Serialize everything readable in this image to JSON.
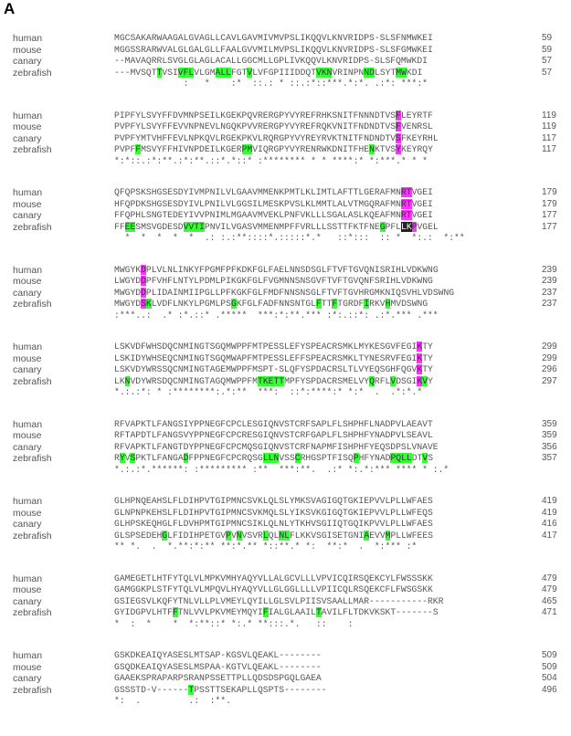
{
  "panel_label": "A",
  "blocks": [
    {
      "rows": [
        {
          "name": "human",
          "seq": "MGCSAKARWAAGALGVAGLLCAVLGAVMIVMVPSLIKQQVLKNVRIDPS-SLSFNMWKEI",
          "end": "59",
          "hl": []
        },
        {
          "name": "mouse",
          "seq": "MGGSSRARWVALGLGALGLLFAALGVVMILMVPSLIKQQVLKNVRIDPS-SLSFGMWKEI",
          "end": "59",
          "hl": []
        },
        {
          "name": "canary",
          "seq": "--MAVAQRRLSVGLGLAGLACALLGGCMLLGPLIVKQQVLKNVRIDPS-SLSFQMWKDI",
          "end": "57",
          "hl": []
        },
        {
          "name": "zebrafish",
          "seq": "---MVSQTTVSIVFLVLGMALLFGTVLVFGPIIIDDQTVKNVRINPNNDLSYTMWKDI",
          "end": "57",
          "hl": [
            [
              8,
              9,
              "g"
            ],
            [
              12,
              15,
              "g"
            ],
            [
              19,
              22,
              "g"
            ],
            [
              25,
              26,
              "g"
            ],
            [
              38,
              41,
              "g"
            ],
            [
              47,
              49,
              "g"
            ],
            [
              53,
              55,
              "g"
            ]
          ]
        },
        {
          "name": "",
          "seq": "             :   *    :*  ::.: * ::.:*::***.*:*. .:*: ***:*",
          "end": "",
          "hl": []
        }
      ]
    },
    {
      "rows": [
        {
          "name": "human",
          "seq": "PIPFYLSVYFFDVMNPSEILKGEKPQVRERGPYVYREFRHKSNITFNNNDTVSFLEYRTF",
          "end": "119",
          "hl": [
            [
              53,
              54,
              "m"
            ]
          ]
        },
        {
          "name": "mouse",
          "seq": "PVPFYLSVYFFEVVNPNEVLNGQKPVVRERGPYVYREFRQKVNITFNDNDTVSFVENRSL",
          "end": "119",
          "hl": [
            [
              53,
              54,
              "m"
            ]
          ]
        },
        {
          "name": "canary",
          "seq": "PVPFYMTVHFFEVLNPKQVLRGEKPKVLRQRGPYVYREYRVKTNITFNDNDTVSFKEYRHL",
          "end": "117",
          "hl": [
            [
              53,
              54,
              "m"
            ]
          ]
        },
        {
          "name": "zebrafish",
          "seq": "PVPFFMSVYFFHIVNPDEILKGERPMVIQRGPYVYRENRWKDNITFHENKTVSYKEYRQY",
          "end": "117",
          "hl": [
            [
              4,
              5,
              "g"
            ],
            [
              24,
              26,
              "g"
            ],
            [
              48,
              49,
              "g"
            ],
            [
              53,
              54,
              "m"
            ]
          ]
        },
        {
          "name": "",
          "seq": "*:*::.:*:**.:*:**.::*.*::* :******** * * ****:* *:***.* * *",
          "end": "",
          "hl": []
        }
      ]
    },
    {
      "rows": [
        {
          "name": "human",
          "seq": "QFQPSKSHGSESDYIVMPNILVLGAAVMMENKPMTLKLIMTLAFTTLGERAFMNRTVGEI",
          "end": "179",
          "hl": [
            [
              54,
              56,
              "m"
            ]
          ]
        },
        {
          "name": "mouse",
          "seq": "HFQPDKSHGSESDYIVLPNILVLGGSILMESKPVSLKLMMTLALVTMGQRAFMNRTVGEI",
          "end": "179",
          "hl": [
            [
              54,
              56,
              "m"
            ]
          ]
        },
        {
          "name": "canary",
          "seq": "FFQPHLSNGTEDEYIVVPNIMLMGAAVMVEKLPNFVKLLLSGALASLKQEAFMNRTVGEI",
          "end": "177",
          "hl": [
            [
              54,
              56,
              "m"
            ]
          ]
        },
        {
          "name": "zebrafish",
          "seq": "FFEESMSVGDESDVVTIPNVILVGASVMMENMPFFVRLLLSSTTFKTFNEGPFLLKPVGEL",
          "end": "177",
          "hl": [
            [
              2,
              4,
              "g"
            ],
            [
              13,
              17,
              "g"
            ],
            [
              50,
              51,
              "g"
            ],
            [
              54,
              56,
              "d"
            ],
            [
              56,
              57,
              "m"
            ]
          ]
        },
        {
          "name": "",
          "seq": "  *  *  *  *  *  .: :.:**::::*.:::::*.*   ::*:::  :: *  *:.:  *:**",
          "end": "",
          "hl": []
        }
      ]
    },
    {
      "rows": [
        {
          "name": "human",
          "seq": "MWGYKDPLVLNLINKYFPGMFPFKDKFGLFAELNNSDSGLFTVFTGVQNISRIHLVDKWNG",
          "end": "239",
          "hl": [
            [
              5,
              6,
              "m"
            ]
          ]
        },
        {
          "name": "mouse",
          "seq": "LWGYDDPFVHFLNTYLPDMLPIKGKFGLFVGMNNSNSGVFTVFTGVQNFSRIHLVDKWNG",
          "end": "239",
          "hl": [
            [
              5,
              6,
              "m"
            ]
          ]
        },
        {
          "name": "canary",
          "seq": "MWGYDDPLIDAINMIIPGLLPFKGKFGLFMDFNNSNSGLFTVFTGVHRGMKNIQSVHLVDSWNG",
          "end": "237",
          "hl": [
            [
              5,
              6,
              "m"
            ]
          ]
        },
        {
          "name": "zebrafish",
          "seq": "MWGYDSKLVDFLNKYLPGMLPSGKFGLFADFNNSNTGLFTTFTGRDFIRKVHMVDSWNG",
          "end": "237",
          "hl": [
            [
              5,
              6,
              "m"
            ],
            [
              6,
              7,
              "g"
            ],
            [
              22,
              23,
              "g"
            ],
            [
              38,
              39,
              "g"
            ],
            [
              41,
              42,
              "g"
            ],
            [
              47,
              48,
              "g"
            ],
            [
              51,
              52,
              "g"
            ]
          ]
        },
        {
          "name": "",
          "seq": ":***..:  .* :*.::* .*****  ***:*:**.*** :*:.::*: .:*.*** .***",
          "end": "",
          "hl": []
        }
      ]
    },
    {
      "rows": [
        {
          "name": "human",
          "seq": "LSKVDFWHSDQCNMINGTSGQMWPPFMTPESSLEFYSPEACRSMKLMYKESGVFEGIKTY",
          "end": "299",
          "hl": [
            [
              57,
              58,
              "m"
            ]
          ]
        },
        {
          "name": "mouse",
          "seq": "LSKIDYWHSEQCNMINGTSGQMWAPFMTPESSLEFFSPEACRSMKLTYNESRVFEGIKTY",
          "end": "299",
          "hl": [
            [
              57,
              58,
              "m"
            ]
          ]
        },
        {
          "name": "canary",
          "seq": "LSKVDYWRSSQCNMINGTAGEMWPPFMSPT-SLQFYSPDACRSLTLVYEQSGHFQGVKTY",
          "end": "296",
          "hl": [
            [
              57,
              58,
              "m"
            ]
          ]
        },
        {
          "name": "zebrafish",
          "seq": "LKNVDYWRSDQCNMINGTAGQMWPPFMTKETTMPFYSPDACRSMELVYQRFLVDSGIKVY",
          "end": "297",
          "hl": [
            [
              2,
              3,
              "g"
            ],
            [
              27,
              32,
              "g"
            ],
            [
              48,
              49,
              "g"
            ],
            [
              52,
              53,
              "g"
            ],
            [
              57,
              58,
              "m"
            ],
            [
              58,
              59,
              "g"
            ]
          ]
        },
        {
          "name": "",
          "seq": "*.:.:*: * :********:.*:**  ***:  ::*:****:* *:*  .  .*:*.*",
          "end": "",
          "hl": []
        }
      ]
    },
    {
      "rows": [
        {
          "name": "human",
          "seq": "RFVAPKTLFANGSIYPPNEGFCPCLESGIQNVSTCRFSAPLFLSHPHFLNADPVLAEAVT",
          "end": "359",
          "hl": []
        },
        {
          "name": "mouse",
          "seq": "RFTAPDTLFANGSVYPPNEGFCPCRESGIQNVSTCRFGAPLFLSHPHFYNADPVLSEAVL",
          "end": "359",
          "hl": []
        },
        {
          "name": "canary",
          "seq": "RFVAPKTLFANGTDYPPNEGFCPCMQSGIQNVSTCRFNAPMFISHPHFYEQSDPSLVNAVE",
          "end": "356",
          "hl": []
        },
        {
          "name": "zebrafish",
          "seq": "RYVSPKTLFANGADFPPNEGFCPCRQSGLLNVSSCRHGSPTFISQPHFYNADPQLLDTVS",
          "end": "357",
          "hl": [
            [
              1,
              2,
              "g"
            ],
            [
              3,
              4,
              "g"
            ],
            [
              13,
              14,
              "g"
            ],
            [
              28,
              31,
              "g"
            ],
            [
              34,
              35,
              "g"
            ],
            [
              45,
              46,
              "g"
            ],
            [
              52,
              56,
              "g"
            ],
            [
              58,
              59,
              "g"
            ]
          ]
        },
        {
          "name": "",
          "seq": "*.:.:*.******: :********* :**  ***:**.  .:* *:.*:*** **** * :.*",
          "end": "",
          "hl": []
        }
      ]
    },
    {
      "rows": [
        {
          "name": "human",
          "seq": "GLHPNQEAHSLFLDIHPVTGIPMNCSVKLQLSLYMKSVAGIGQTGKIEPVVLPLLWFAES",
          "end": "419",
          "hl": []
        },
        {
          "name": "mouse",
          "seq": "GLNPNPKEHSLFLDIHPVTGIPMNCSVKMQLSLYIKSVKGIGQTGKIEPVVLPLLWFEQS",
          "end": "419",
          "hl": []
        },
        {
          "name": "canary",
          "seq": "GLHPSKEQHGLFLDVHPMTGIPMNCSIKLQLNLYTKHVSGIIQTGQIKPVVLPLLWFAES",
          "end": "416",
          "hl": []
        },
        {
          "name": "zebrafish",
          "seq": "GLSPSEDEHGLFIDIHPETGVPVNVSVRLQLNLFLKKVSGISETGNIAEVVMPLLWFEES",
          "end": "417",
          "hl": [
            [
              9,
              10,
              "g"
            ],
            [
              21,
              22,
              "g"
            ],
            [
              23,
              24,
              "g"
            ],
            [
              28,
              29,
              "g"
            ],
            [
              31,
              33,
              "g"
            ],
            [
              47,
              48,
              "g"
            ],
            [
              51,
              52,
              "g"
            ]
          ]
        },
        {
          "name": "",
          "seq": "** *.  .  *.**:*:** **:*.** *::**.* *:  **:*  .  *:*** :*",
          "end": "",
          "hl": []
        }
      ]
    },
    {
      "rows": [
        {
          "name": "human",
          "seq": "GAMEGETLHTFYTQLVLMPKVMHYAQYVLLALGCVLLLVPVICQIRSQEKCYLFWSSSKK",
          "end": "479",
          "hl": []
        },
        {
          "name": "mouse",
          "seq": "GAMGGKPLSTFYTQLVLMPQVLHYAQYVLLGLGGLLLLVPIICQLRSQEKCFLFWSGSKK",
          "end": "479",
          "hl": []
        },
        {
          "name": "canary",
          "seq": "GSIEGSVLKQFYTNLVLLPLVMEYLQYILLGLSVLPIISVSAALLMAR-----------RKR",
          "end": "465",
          "hl": []
        },
        {
          "name": "zebrafish",
          "seq": "GYIDGPVLHTFFTNLVVLPKVMEYMQYIFIALGLAAILTAVILFLTDKVKSKT-------S",
          "end": "471",
          "hl": [
            [
              11,
              12,
              "g"
            ],
            [
              28,
              29,
              "g"
            ],
            [
              38,
              39,
              "g"
            ]
          ]
        },
        {
          "name": "",
          "seq": "*  :  *    *  *:**::* *:.* **:::.*.   ::    :",
          "end": "",
          "hl": []
        }
      ]
    },
    {
      "rows": [
        {
          "name": "human",
          "seq": "GSKDKEAIQYASESLMTSAP-KGSVLQEAKL--------",
          "end": "509",
          "hl": []
        },
        {
          "name": "mouse",
          "seq": "GSQDKEAIQYASESLMSPAA-KGTVLQEAKL--------",
          "end": "509",
          "hl": []
        },
        {
          "name": "canary",
          "seq": "GAAEKSPRAPARPSRANPSSETTPLLQDSDSPGQLGAEA",
          "end": "504",
          "hl": []
        },
        {
          "name": "zebrafish",
          "seq": "GSSSTD-V------TPSSTTSEKAPLLQSPTS--------",
          "end": "496",
          "hl": [
            [
              14,
              15,
              "g"
            ]
          ]
        },
        {
          "name": "",
          "seq": "*:  .         .:  :**.",
          "end": "",
          "hl": []
        }
      ]
    }
  ],
  "colors": {
    "green": "#33ff33",
    "magenta": "#ff33ff",
    "dark": "#222222"
  }
}
